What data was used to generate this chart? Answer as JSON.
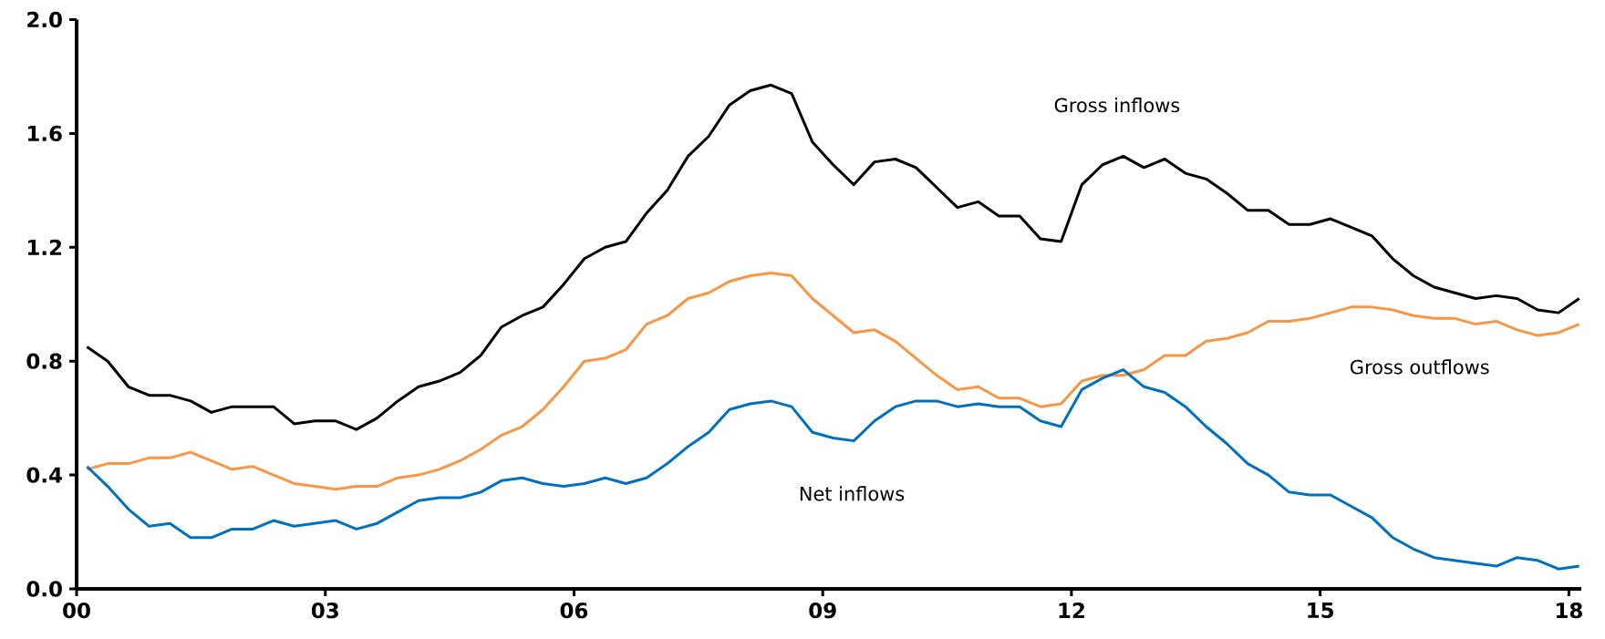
{
  "chart_data": {
    "type": "line",
    "x": [
      2000.125,
      2000.375,
      2000.625,
      2000.875,
      2001.125,
      2001.375,
      2001.625,
      2001.875,
      2002.125,
      2002.375,
      2002.625,
      2002.875,
      2003.125,
      2003.375,
      2003.625,
      2003.875,
      2004.125,
      2004.375,
      2004.625,
      2004.875,
      2005.125,
      2005.375,
      2005.625,
      2005.875,
      2006.125,
      2006.375,
      2006.625,
      2006.875,
      2007.125,
      2007.375,
      2007.625,
      2007.875,
      2008.125,
      2008.375,
      2008.625,
      2008.875,
      2009.125,
      2009.375,
      2009.625,
      2009.875,
      2010.125,
      2010.375,
      2010.625,
      2010.875,
      2011.125,
      2011.375,
      2011.625,
      2011.875,
      2012.125,
      2012.375,
      2012.625,
      2012.875,
      2013.125,
      2013.375,
      2013.625,
      2013.875,
      2014.125,
      2014.375,
      2014.625,
      2014.875,
      2015.125,
      2015.375,
      2015.625,
      2015.875,
      2016.125,
      2016.375,
      2016.625,
      2016.875,
      2017.125,
      2017.375,
      2017.625,
      2017.875,
      2018.125
    ],
    "series": [
      {
        "name": "Gross inflows",
        "color": "#000000",
        "values": [
          0.85,
          0.8,
          0.71,
          0.68,
          0.68,
          0.66,
          0.62,
          0.64,
          0.64,
          0.64,
          0.58,
          0.59,
          0.59,
          0.56,
          0.6,
          0.66,
          0.71,
          0.73,
          0.76,
          0.82,
          0.92,
          0.96,
          0.99,
          1.07,
          1.16,
          1.2,
          1.22,
          1.32,
          1.4,
          1.52,
          1.59,
          1.7,
          1.75,
          1.77,
          1.74,
          1.57,
          1.49,
          1.42,
          1.5,
          1.51,
          1.48,
          1.41,
          1.34,
          1.36,
          1.31,
          1.31,
          1.23,
          1.22,
          1.42,
          1.49,
          1.52,
          1.48,
          1.51,
          1.46,
          1.44,
          1.39,
          1.33,
          1.33,
          1.28,
          1.28,
          1.3,
          1.27,
          1.24,
          1.16,
          1.1,
          1.06,
          1.04,
          1.02,
          1.03,
          1.02,
          0.98,
          0.97,
          1.02
        ]
      },
      {
        "name": "Gross outflows",
        "color": "#f79646",
        "values": [
          0.42,
          0.44,
          0.44,
          0.46,
          0.46,
          0.48,
          0.45,
          0.42,
          0.43,
          0.4,
          0.37,
          0.36,
          0.35,
          0.36,
          0.36,
          0.39,
          0.4,
          0.42,
          0.45,
          0.49,
          0.54,
          0.57,
          0.63,
          0.71,
          0.8,
          0.81,
          0.84,
          0.93,
          0.96,
          1.02,
          1.04,
          1.08,
          1.1,
          1.11,
          1.1,
          1.02,
          0.96,
          0.9,
          0.91,
          0.87,
          0.81,
          0.75,
          0.7,
          0.71,
          0.67,
          0.67,
          0.64,
          0.65,
          0.73,
          0.75,
          0.75,
          0.77,
          0.82,
          0.82,
          0.87,
          0.88,
          0.9,
          0.94,
          0.94,
          0.95,
          0.97,
          0.99,
          0.99,
          0.98,
          0.96,
          0.95,
          0.95,
          0.93,
          0.94,
          0.91,
          0.89,
          0.9,
          0.93
        ]
      },
      {
        "name": "Net inflows",
        "color": "#0070c0",
        "values": [
          0.43,
          0.36,
          0.28,
          0.22,
          0.23,
          0.18,
          0.18,
          0.21,
          0.21,
          0.24,
          0.22,
          0.23,
          0.24,
          0.21,
          0.23,
          0.27,
          0.31,
          0.32,
          0.32,
          0.34,
          0.38,
          0.39,
          0.37,
          0.36,
          0.37,
          0.39,
          0.37,
          0.39,
          0.44,
          0.5,
          0.55,
          0.63,
          0.65,
          0.66,
          0.64,
          0.55,
          0.53,
          0.52,
          0.59,
          0.64,
          0.66,
          0.66,
          0.64,
          0.65,
          0.64,
          0.64,
          0.59,
          0.57,
          0.7,
          0.74,
          0.77,
          0.71,
          0.69,
          0.64,
          0.57,
          0.51,
          0.44,
          0.4,
          0.34,
          0.33,
          0.33,
          0.29,
          0.25,
          0.18,
          0.14,
          0.11,
          0.1,
          0.09,
          0.08,
          0.11,
          0.1,
          0.07,
          0.08
        ]
      }
    ],
    "xlim": [
      2000,
      2018.15
    ],
    "xticks": [
      {
        "value": 2000,
        "label": "00"
      },
      {
        "value": 2003,
        "label": "03"
      },
      {
        "value": 2006,
        "label": "06"
      },
      {
        "value": 2009,
        "label": "09"
      },
      {
        "value": 2012,
        "label": "12"
      },
      {
        "value": 2015,
        "label": "15"
      },
      {
        "value": 2018,
        "label": "18"
      }
    ],
    "ylim": [
      0,
      2
    ],
    "yticks": [
      {
        "value": 0,
        "label": "0.0"
      },
      {
        "value": 0.4,
        "label": "0.4"
      },
      {
        "value": 0.8,
        "label": "0.8"
      },
      {
        "value": 1.2,
        "label": "1.2"
      },
      {
        "value": 1.6,
        "label": "1.6"
      },
      {
        "value": 2,
        "label": "2.0"
      }
    ]
  }
}
